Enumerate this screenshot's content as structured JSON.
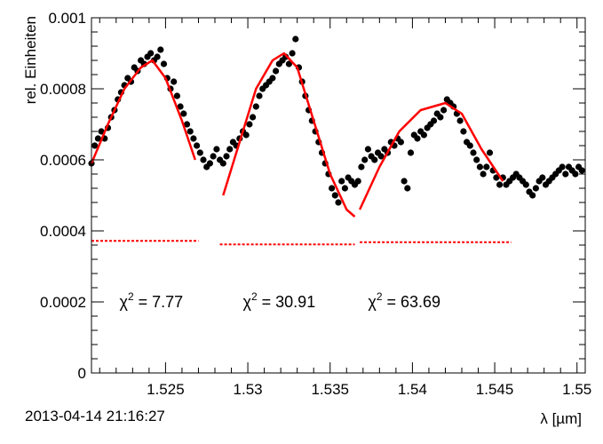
{
  "chart_data": {
    "type": "scatter",
    "title": "",
    "xlabel": "λ [µm]",
    "ylabel": "rel. Einheiten",
    "xlim": [
      1.5205,
      1.5505
    ],
    "ylim": [
      0,
      0.001
    ],
    "x_ticks": [
      1.525,
      1.53,
      1.535,
      1.54,
      1.545,
      1.55
    ],
    "x_tick_labels": [
      "1.525",
      "1.53",
      "1.535",
      "1.54",
      "1.545",
      "1.55"
    ],
    "y_ticks": [
      0,
      0.0002,
      0.0004,
      0.0006,
      0.0008,
      0.001
    ],
    "y_tick_labels": [
      "0",
      "0.0002",
      "0.0004",
      "0.0006",
      "0.0008",
      "0.001"
    ],
    "grid": false,
    "series": [
      {
        "type": "scatter",
        "color": "#000000",
        "points": [
          [
            1.5205,
            0.00059
          ],
          [
            1.5207,
            0.00064
          ],
          [
            1.5209,
            0.00066
          ],
          [
            1.5211,
            0.00068
          ],
          [
            1.5213,
            0.00066
          ],
          [
            1.5215,
            0.00069
          ],
          [
            1.5217,
            0.00072
          ],
          [
            1.5219,
            0.00074
          ],
          [
            1.5221,
            0.00077
          ],
          [
            1.5223,
            0.00079
          ],
          [
            1.5225,
            0.00081
          ],
          [
            1.5227,
            0.00083
          ],
          [
            1.5229,
            0.00082
          ],
          [
            1.5231,
            0.00086
          ],
          [
            1.5233,
            0.00085
          ],
          [
            1.5235,
            0.00088
          ],
          [
            1.5237,
            0.00087
          ],
          [
            1.5239,
            0.00089
          ],
          [
            1.5241,
            0.0009
          ],
          [
            1.5243,
            0.00088
          ],
          [
            1.5245,
            0.00089
          ],
          [
            1.5247,
            0.00091
          ],
          [
            1.5249,
            0.00087
          ],
          [
            1.5251,
            0.00083
          ],
          [
            1.5253,
            0.0008
          ],
          [
            1.5255,
            0.00082
          ],
          [
            1.5257,
            0.00078
          ],
          [
            1.5259,
            0.00075
          ],
          [
            1.5261,
            0.00073
          ],
          [
            1.5263,
            0.0007
          ],
          [
            1.5265,
            0.00068
          ],
          [
            1.5267,
            0.00066
          ],
          [
            1.5269,
            0.00064
          ],
          [
            1.5271,
            0.00062
          ],
          [
            1.5273,
            0.0006
          ],
          [
            1.5275,
            0.00058
          ],
          [
            1.5277,
            0.00059
          ],
          [
            1.5279,
            0.00061
          ],
          [
            1.5281,
            0.00063
          ],
          [
            1.5283,
            0.0006
          ],
          [
            1.5285,
            0.00059
          ],
          [
            1.5287,
            0.00061
          ],
          [
            1.5289,
            0.00063
          ],
          [
            1.5291,
            0.00065
          ],
          [
            1.5293,
            0.00064
          ],
          [
            1.5295,
            0.00066
          ],
          [
            1.5297,
            0.00068
          ],
          [
            1.5299,
            0.00067
          ],
          [
            1.5301,
            0.0007
          ],
          [
            1.5303,
            0.00072
          ],
          [
            1.5305,
            0.00075
          ],
          [
            1.5307,
            0.00078
          ],
          [
            1.5309,
            0.0008
          ],
          [
            1.5311,
            0.00081
          ],
          [
            1.5313,
            0.00082
          ],
          [
            1.5315,
            0.00083
          ],
          [
            1.5317,
            0.00085
          ],
          [
            1.5319,
            0.00087
          ],
          [
            1.5321,
            0.00088
          ],
          [
            1.5323,
            0.00089
          ],
          [
            1.5325,
            0.00087
          ],
          [
            1.5327,
            0.0009
          ],
          [
            1.5329,
            0.00094
          ],
          [
            1.5331,
            0.00086
          ],
          [
            1.5333,
            0.00082
          ],
          [
            1.5335,
            0.00078
          ],
          [
            1.5337,
            0.00074
          ],
          [
            1.5339,
            0.00071
          ],
          [
            1.5341,
            0.00068
          ],
          [
            1.5343,
            0.00065
          ],
          [
            1.5345,
            0.00062
          ],
          [
            1.5347,
            0.00059
          ],
          [
            1.5349,
            0.00056
          ],
          [
            1.5351,
            0.00052
          ],
          [
            1.5353,
            0.0005
          ],
          [
            1.5355,
            0.00048
          ],
          [
            1.5357,
            0.00054
          ],
          [
            1.5359,
            0.00052
          ],
          [
            1.5361,
            0.00055
          ],
          [
            1.5363,
            0.00054
          ],
          [
            1.5365,
            0.00053
          ],
          [
            1.5367,
            0.00054
          ],
          [
            1.5369,
            0.00058
          ],
          [
            1.5371,
            0.0006
          ],
          [
            1.5373,
            0.00063
          ],
          [
            1.5375,
            0.00061
          ],
          [
            1.5377,
            0.0006
          ],
          [
            1.5379,
            0.00062
          ],
          [
            1.5381,
            0.00061
          ],
          [
            1.5383,
            0.00063
          ],
          [
            1.5385,
            0.00062
          ],
          [
            1.5387,
            0.00065
          ],
          [
            1.5389,
            0.00064
          ],
          [
            1.5391,
            0.00066
          ],
          [
            1.5393,
            0.00065
          ],
          [
            1.5395,
            0.00054
          ],
          [
            1.5397,
            0.00052
          ],
          [
            1.5399,
            0.00062
          ],
          [
            1.5401,
            0.00067
          ],
          [
            1.5403,
            0.00066
          ],
          [
            1.5405,
            0.00068
          ],
          [
            1.5407,
            0.00067
          ],
          [
            1.5409,
            0.00069
          ],
          [
            1.5411,
            0.0007
          ],
          [
            1.5413,
            0.00071
          ],
          [
            1.5415,
            0.00073
          ],
          [
            1.5417,
            0.00072
          ],
          [
            1.5419,
            0.00074
          ],
          [
            1.5421,
            0.00077
          ],
          [
            1.5423,
            0.00076
          ],
          [
            1.5425,
            0.00075
          ],
          [
            1.5427,
            0.00073
          ],
          [
            1.5429,
            0.00071
          ],
          [
            1.5431,
            0.00068
          ],
          [
            1.5433,
            0.00065
          ],
          [
            1.5435,
            0.00064
          ],
          [
            1.5437,
            0.00062
          ],
          [
            1.5439,
            0.0006
          ],
          [
            1.5441,
            0.00058
          ],
          [
            1.5443,
            0.00056
          ],
          [
            1.5445,
            0.00058
          ],
          [
            1.5447,
            0.00062
          ],
          [
            1.5449,
            0.00057
          ],
          [
            1.5451,
            0.00055
          ],
          [
            1.5453,
            0.00053
          ],
          [
            1.5455,
            0.00055
          ],
          [
            1.5457,
            0.00053
          ],
          [
            1.5459,
            0.00054
          ],
          [
            1.5461,
            0.00055
          ],
          [
            1.5463,
            0.00056
          ],
          [
            1.5465,
            0.00055
          ],
          [
            1.5467,
            0.00054
          ],
          [
            1.5469,
            0.00053
          ],
          [
            1.5471,
            0.00051
          ],
          [
            1.5473,
            0.0005
          ],
          [
            1.5475,
            0.00052
          ],
          [
            1.5477,
            0.00054
          ],
          [
            1.5479,
            0.00055
          ],
          [
            1.5481,
            0.00053
          ],
          [
            1.5483,
            0.00054
          ],
          [
            1.5485,
            0.00055
          ],
          [
            1.5487,
            0.00056
          ],
          [
            1.5489,
            0.00057
          ],
          [
            1.5491,
            0.00058
          ],
          [
            1.5493,
            0.00056
          ],
          [
            1.5495,
            0.00058
          ],
          [
            1.5497,
            0.00057
          ],
          [
            1.5499,
            0.00056
          ],
          [
            1.5501,
            0.00058
          ],
          [
            1.5503,
            0.00057
          ]
        ]
      }
    ],
    "fits": [
      {
        "type": "line",
        "style": "solid",
        "color": "#ff0000",
        "points": [
          [
            1.5205,
            0.00059
          ],
          [
            1.5215,
            0.0007
          ],
          [
            1.5225,
            0.0008
          ],
          [
            1.5235,
            0.00086
          ],
          [
            1.5242,
            0.00088
          ],
          [
            1.525,
            0.00083
          ],
          [
            1.526,
            0.00071
          ],
          [
            1.5268,
            0.0006
          ]
        ]
      },
      {
        "type": "line",
        "style": "solid",
        "color": "#ff0000",
        "points": [
          [
            1.5285,
            0.0005
          ],
          [
            1.5295,
            0.00065
          ],
          [
            1.5305,
            0.0008
          ],
          [
            1.5315,
            0.00088
          ],
          [
            1.5322,
            0.0009
          ],
          [
            1.533,
            0.00086
          ],
          [
            1.534,
            0.00071
          ],
          [
            1.535,
            0.00056
          ],
          [
            1.536,
            0.00046
          ],
          [
            1.5365,
            0.00044
          ]
        ]
      },
      {
        "type": "line",
        "style": "solid",
        "color": "#ff0000",
        "points": [
          [
            1.5368,
            0.00046
          ],
          [
            1.538,
            0.00058
          ],
          [
            1.5392,
            0.00068
          ],
          [
            1.5405,
            0.00074
          ],
          [
            1.542,
            0.00076
          ],
          [
            1.543,
            0.00073
          ],
          [
            1.5442,
            0.00063
          ],
          [
            1.5455,
            0.00054
          ]
        ]
      },
      {
        "type": "line",
        "style": "dotted",
        "color": "#ff0000",
        "points": [
          [
            1.5205,
            0.000372
          ],
          [
            1.527,
            0.000372
          ]
        ]
      },
      {
        "type": "line",
        "style": "dotted",
        "color": "#ff0000",
        "points": [
          [
            1.5283,
            0.000362
          ],
          [
            1.5365,
            0.000362
          ]
        ]
      },
      {
        "type": "line",
        "style": "dotted",
        "color": "#ff0000",
        "points": [
          [
            1.5368,
            0.000368
          ],
          [
            1.546,
            0.000368
          ]
        ]
      }
    ],
    "annotations": [
      {
        "name": "chi2-1",
        "base": "χ",
        "sup": "2",
        "rest": " = 7.77",
        "x": 1.5222,
        "y": 0.0002
      },
      {
        "name": "chi2-2",
        "base": "χ",
        "sup": "2",
        "rest": " = 30.91",
        "x": 1.5297,
        "y": 0.0002
      },
      {
        "name": "chi2-3",
        "base": "χ",
        "sup": "2",
        "rest": " = 63.69",
        "x": 1.5373,
        "y": 0.0002
      }
    ]
  },
  "timestamp": "2013-04-14 21:16:27"
}
